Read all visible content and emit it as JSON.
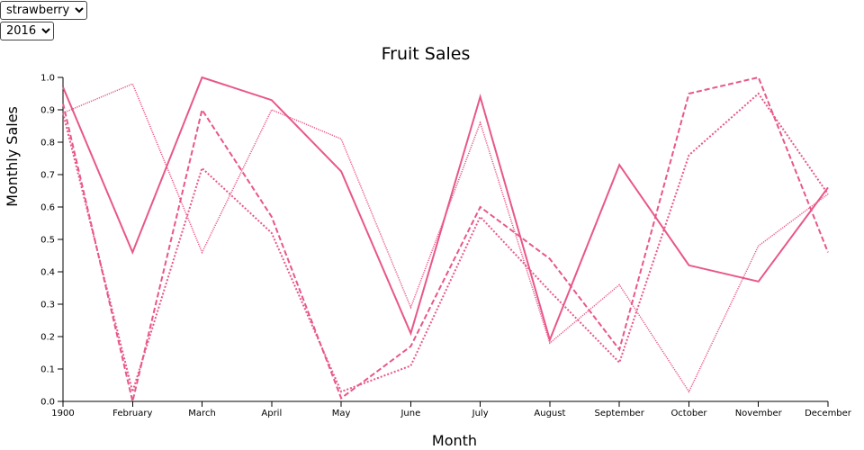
{
  "controls": {
    "fruit": {
      "selected": "strawberry",
      "options": [
        "strawberry"
      ]
    },
    "year": {
      "selected": "2016",
      "options": [
        "2016"
      ]
    }
  },
  "colors": {
    "series": "#e8578a",
    "axis": "#000000"
  },
  "chart_data": {
    "type": "line",
    "title": "Fruit Sales",
    "xlabel": "Month",
    "ylabel": "Monthly Sales",
    "categories": [
      "1900",
      "February",
      "March",
      "April",
      "May",
      "June",
      "July",
      "August",
      "September",
      "October",
      "November",
      "December"
    ],
    "ylim": [
      0,
      1
    ],
    "yticks": [
      "0.0",
      "0.1",
      "0.2",
      "0.3",
      "0.4",
      "0.5",
      "0.6",
      "0.7",
      "0.8",
      "0.9",
      "1.0"
    ],
    "grid": false,
    "legend": "none",
    "series": [
      {
        "style": "solid",
        "values": [
          0.97,
          0.46,
          1.0,
          0.93,
          0.71,
          0.21,
          0.94,
          0.19,
          0.73,
          0.42,
          0.37,
          0.66
        ]
      },
      {
        "style": "dashed",
        "values": [
          0.92,
          0.0,
          0.9,
          0.57,
          0.01,
          0.17,
          0.6,
          0.44,
          0.16,
          0.95,
          1.0,
          0.46
        ]
      },
      {
        "style": "dotted",
        "values": [
          0.89,
          0.03,
          0.72,
          0.52,
          0.03,
          0.11,
          0.57,
          0.34,
          0.12,
          0.76,
          0.95,
          0.64
        ]
      },
      {
        "style": "dotted-fine",
        "values": [
          0.89,
          0.98,
          0.46,
          0.9,
          0.81,
          0.29,
          0.86,
          0.18,
          0.36,
          0.03,
          0.48,
          0.64
        ]
      }
    ]
  }
}
